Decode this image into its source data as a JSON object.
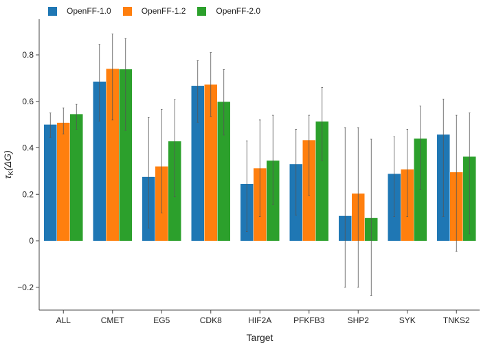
{
  "chart_data": {
    "type": "bar",
    "xlabel": "Target",
    "ylabel_symbol": "τ",
    "ylabel_sub": "K",
    "ylabel_arg": "(ΔG)",
    "ylim": [
      -0.3,
      0.95
    ],
    "yticks": [
      -0.2,
      0,
      0.2,
      0.4,
      0.6,
      0.8
    ],
    "ytick_labels": [
      "−0.2",
      "0",
      "0.2",
      "0.4",
      "0.6",
      "0.8"
    ],
    "categories": [
      "ALL",
      "CMET",
      "EG5",
      "CDK8",
      "HIF2A",
      "PFKFB3",
      "SHP2",
      "SYK",
      "TNKS2"
    ],
    "legend_position": "top-left",
    "grid": false,
    "series": [
      {
        "name": "OpenFF-1.0",
        "color": "#1f77b4",
        "values": [
          0.5,
          0.685,
          0.275,
          0.667,
          0.245,
          0.33,
          0.107,
          0.288,
          0.457
        ],
        "err_low": [
          0.445,
          0.515,
          0.055,
          0.51,
          0.04,
          0.11,
          -0.2,
          0.105,
          0.105
        ],
        "err_high": [
          0.55,
          0.845,
          0.53,
          0.775,
          0.43,
          0.48,
          0.487,
          0.447,
          0.61
        ]
      },
      {
        "name": "OpenFF-1.2",
        "color": "#ff7f0e",
        "values": [
          0.508,
          0.74,
          0.32,
          0.672,
          0.312,
          0.433,
          0.203,
          0.307,
          0.295
        ],
        "err_low": [
          0.46,
          0.52,
          0.12,
          0.535,
          0.105,
          0.195,
          -0.2,
          0.105,
          -0.045
        ],
        "err_high": [
          0.572,
          0.89,
          0.565,
          0.81,
          0.52,
          0.54,
          0.487,
          0.48,
          0.54
        ]
      },
      {
        "name": "OpenFF-2.0",
        "color": "#2ca02c",
        "values": [
          0.545,
          0.738,
          0.428,
          0.598,
          0.345,
          0.513,
          0.098,
          0.44,
          0.362
        ],
        "err_low": [
          0.48,
          0.475,
          0.19,
          0.455,
          0.155,
          0.345,
          -0.235,
          0.22,
          0.03
        ],
        "err_high": [
          0.587,
          0.87,
          0.607,
          0.737,
          0.54,
          0.66,
          0.437,
          0.58,
          0.55
        ]
      }
    ]
  }
}
